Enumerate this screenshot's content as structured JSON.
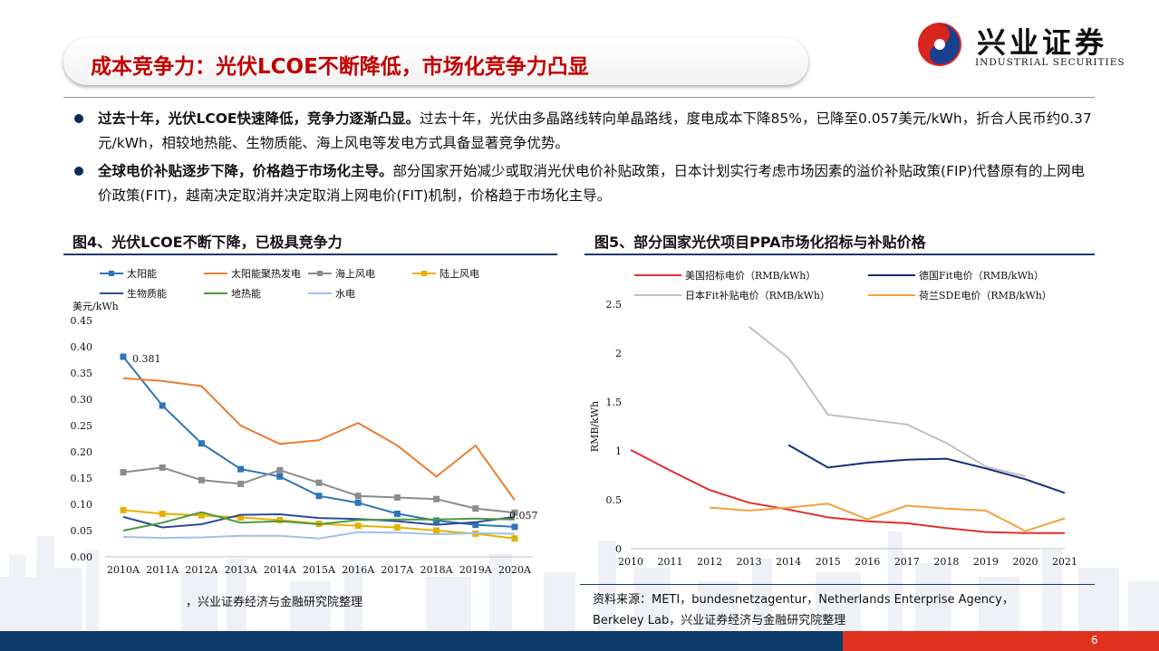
{
  "header": {
    "title": "成本竞争力：光伏LCOE不断降低，市场化竞争力凸显",
    "logo_cn": "兴业证券",
    "logo_en": "INDUSTRIAL SECURITIES"
  },
  "bullets": [
    {
      "bold": "过去十年，光伏LCOE快速降低，竞争力逐渐凸显。",
      "text": "过去十年，光伏由多晶路线转向单晶路线，度电成本下降85%，已降至0.057美元/kWh，折合人民币约0.37元/kWh，相较地热能、生物质能、海上风电等发电方式具备显著竞争优势。"
    },
    {
      "bold": "全球电价补贴逐步下降，价格趋于市场化主导。",
      "text": "部分国家开始减少或取消光伏电价补贴政策，日本计划实行考虑市场因素的溢价补贴政策(FIP)代替原有的上网电价政策(FIT)，越南决定取消并决定取消上网电价(FIT)机制，价格趋于市场化主导。"
    }
  ],
  "fig4": {
    "title": "图4、光伏LCOE不断下降，已极具竞争力",
    "source": "，兴业证券经济与金融研究院整理"
  },
  "fig5": {
    "title": "图5、部分国家光伏项目PPA市场化招标与补贴价格",
    "source_line1": "资料来源：METI，bundesnetzagentur，Netherlands Enterprise Agency，",
    "source_line2": "Berkeley Lab，兴业证券经济与金融研究院整理"
  },
  "footer": {
    "page": "6"
  },
  "chart_data": [
    {
      "type": "line",
      "title": "图4、光伏LCOE不断下降，已极具竞争力",
      "ylabel": "美元/kWh",
      "ylim": [
        0,
        0.45
      ],
      "yticks": [
        "0.00",
        "0.05",
        "0.10",
        "0.15",
        "0.20",
        "0.25",
        "0.30",
        "0.35",
        "0.40",
        "0.45"
      ],
      "x": [
        "2010A",
        "2011A",
        "2012A",
        "2013A",
        "2014A",
        "2015A",
        "2016A",
        "2017A",
        "2018A",
        "2019A",
        "2020A"
      ],
      "legend_position": "top",
      "series": [
        {
          "name": "太阳能",
          "color": "#2e75b6",
          "marker": "square",
          "values": [
            0.381,
            0.288,
            0.216,
            0.167,
            0.153,
            0.116,
            0.103,
            0.082,
            0.069,
            0.061,
            0.057
          ]
        },
        {
          "name": "太阳能聚热发电",
          "color": "#ed7d31",
          "marker": "none",
          "values": [
            0.34,
            0.335,
            0.325,
            0.25,
            0.215,
            0.222,
            0.255,
            0.212,
            0.153,
            0.212,
            0.108
          ]
        },
        {
          "name": "海上风电",
          "color": "#8c8c8c",
          "marker": "square",
          "values": [
            0.161,
            0.17,
            0.146,
            0.139,
            0.165,
            0.141,
            0.116,
            0.113,
            0.11,
            0.092,
            0.084
          ]
        },
        {
          "name": "陆上风电",
          "color": "#e5b100",
          "marker": "square",
          "values": [
            0.089,
            0.082,
            0.079,
            0.075,
            0.07,
            0.063,
            0.059,
            0.056,
            0.05,
            0.044,
            0.035
          ]
        },
        {
          "name": "生物质能",
          "color": "#2f4a9e",
          "marker": "none",
          "values": [
            0.076,
            0.056,
            0.062,
            0.08,
            0.081,
            0.074,
            0.072,
            0.068,
            0.061,
            0.066,
            0.076
          ]
        },
        {
          "name": "地热能",
          "color": "#4e9a3a",
          "marker": "none",
          "values": [
            0.05,
            0.065,
            0.085,
            0.065,
            0.068,
            0.062,
            0.07,
            0.071,
            0.071,
            0.073,
            0.071
          ]
        },
        {
          "name": "水电",
          "color": "#9dc3e6",
          "marker": "none",
          "values": [
            0.038,
            0.036,
            0.037,
            0.04,
            0.04,
            0.035,
            0.047,
            0.046,
            0.043,
            0.045,
            0.044
          ]
        }
      ],
      "annotations": [
        {
          "x": "2010A",
          "label": "0.381"
        },
        {
          "x": "2020A",
          "label": "0.057"
        }
      ]
    },
    {
      "type": "line",
      "title": "图5、部分国家光伏项目PPA市场化招标与补贴价格",
      "ylabel": "RMB/kWh",
      "ylim": [
        0,
        2.5
      ],
      "yticks": [
        "0",
        "0.5",
        "1",
        "1.5",
        "2",
        "2.5"
      ],
      "x": [
        "2010",
        "2011",
        "2012",
        "2013",
        "2014",
        "2015",
        "2016",
        "2017",
        "2018",
        "2019",
        "2020",
        "2021"
      ],
      "legend_position": "top",
      "series": [
        {
          "name": "美国招标电价（RMB/kWh）",
          "color": "#e0302a",
          "values": [
            1.01,
            0.8,
            0.6,
            0.47,
            0.4,
            0.32,
            0.28,
            0.26,
            0.21,
            0.17,
            0.16,
            0.16
          ]
        },
        {
          "name": "德国Fit电价（RMB/kWh）",
          "color": "#13307a",
          "values": [
            null,
            null,
            null,
            null,
            1.06,
            0.83,
            0.88,
            0.91,
            0.92,
            0.82,
            0.71,
            0.57
          ]
        },
        {
          "name": "日本Fit补贴电价（RMB/kWh）",
          "color": "#c0c0c0",
          "values": [
            null,
            null,
            null,
            2.27,
            1.95,
            1.37,
            1.32,
            1.27,
            1.08,
            0.84,
            0.74,
            null
          ]
        },
        {
          "name": "荷兰SDE电价（RMB/kWh）",
          "color": "#f5a03a",
          "values": [
            null,
            null,
            0.42,
            0.39,
            0.42,
            0.46,
            0.3,
            0.44,
            0.41,
            0.39,
            0.18,
            0.31
          ]
        }
      ]
    }
  ]
}
